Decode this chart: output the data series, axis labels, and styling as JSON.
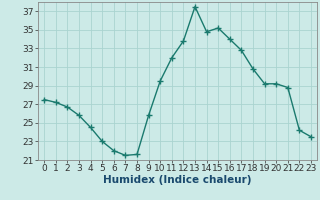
{
  "x": [
    0,
    1,
    2,
    3,
    4,
    5,
    6,
    7,
    8,
    9,
    10,
    11,
    12,
    13,
    14,
    15,
    16,
    17,
    18,
    19,
    20,
    21,
    22,
    23
  ],
  "y": [
    27.5,
    27.2,
    26.7,
    25.8,
    24.5,
    23.0,
    22.0,
    21.5,
    21.6,
    25.8,
    29.5,
    32.0,
    33.8,
    37.5,
    34.8,
    35.2,
    34.0,
    32.8,
    30.8,
    29.2,
    29.2,
    28.8,
    24.2,
    23.5
  ],
  "line_color": "#1a7a6e",
  "marker": "+",
  "marker_size": 4,
  "bg_color": "#cceae7",
  "grid_major_color": "#aad4d0",
  "grid_minor_color": "#bde0dc",
  "xlabel": "Humidex (Indice chaleur)",
  "xlim": [
    -0.5,
    23.5
  ],
  "ylim": [
    21,
    38
  ],
  "yticks": [
    21,
    23,
    25,
    27,
    29,
    31,
    33,
    35,
    37
  ],
  "xticks": [
    0,
    1,
    2,
    3,
    4,
    5,
    6,
    7,
    8,
    9,
    10,
    11,
    12,
    13,
    14,
    15,
    16,
    17,
    18,
    19,
    20,
    21,
    22,
    23
  ],
  "tick_label_fontsize": 6.5,
  "xlabel_fontsize": 7.5,
  "linewidth": 1.0,
  "marker_linewidth": 1.0,
  "spine_color": "#888888"
}
